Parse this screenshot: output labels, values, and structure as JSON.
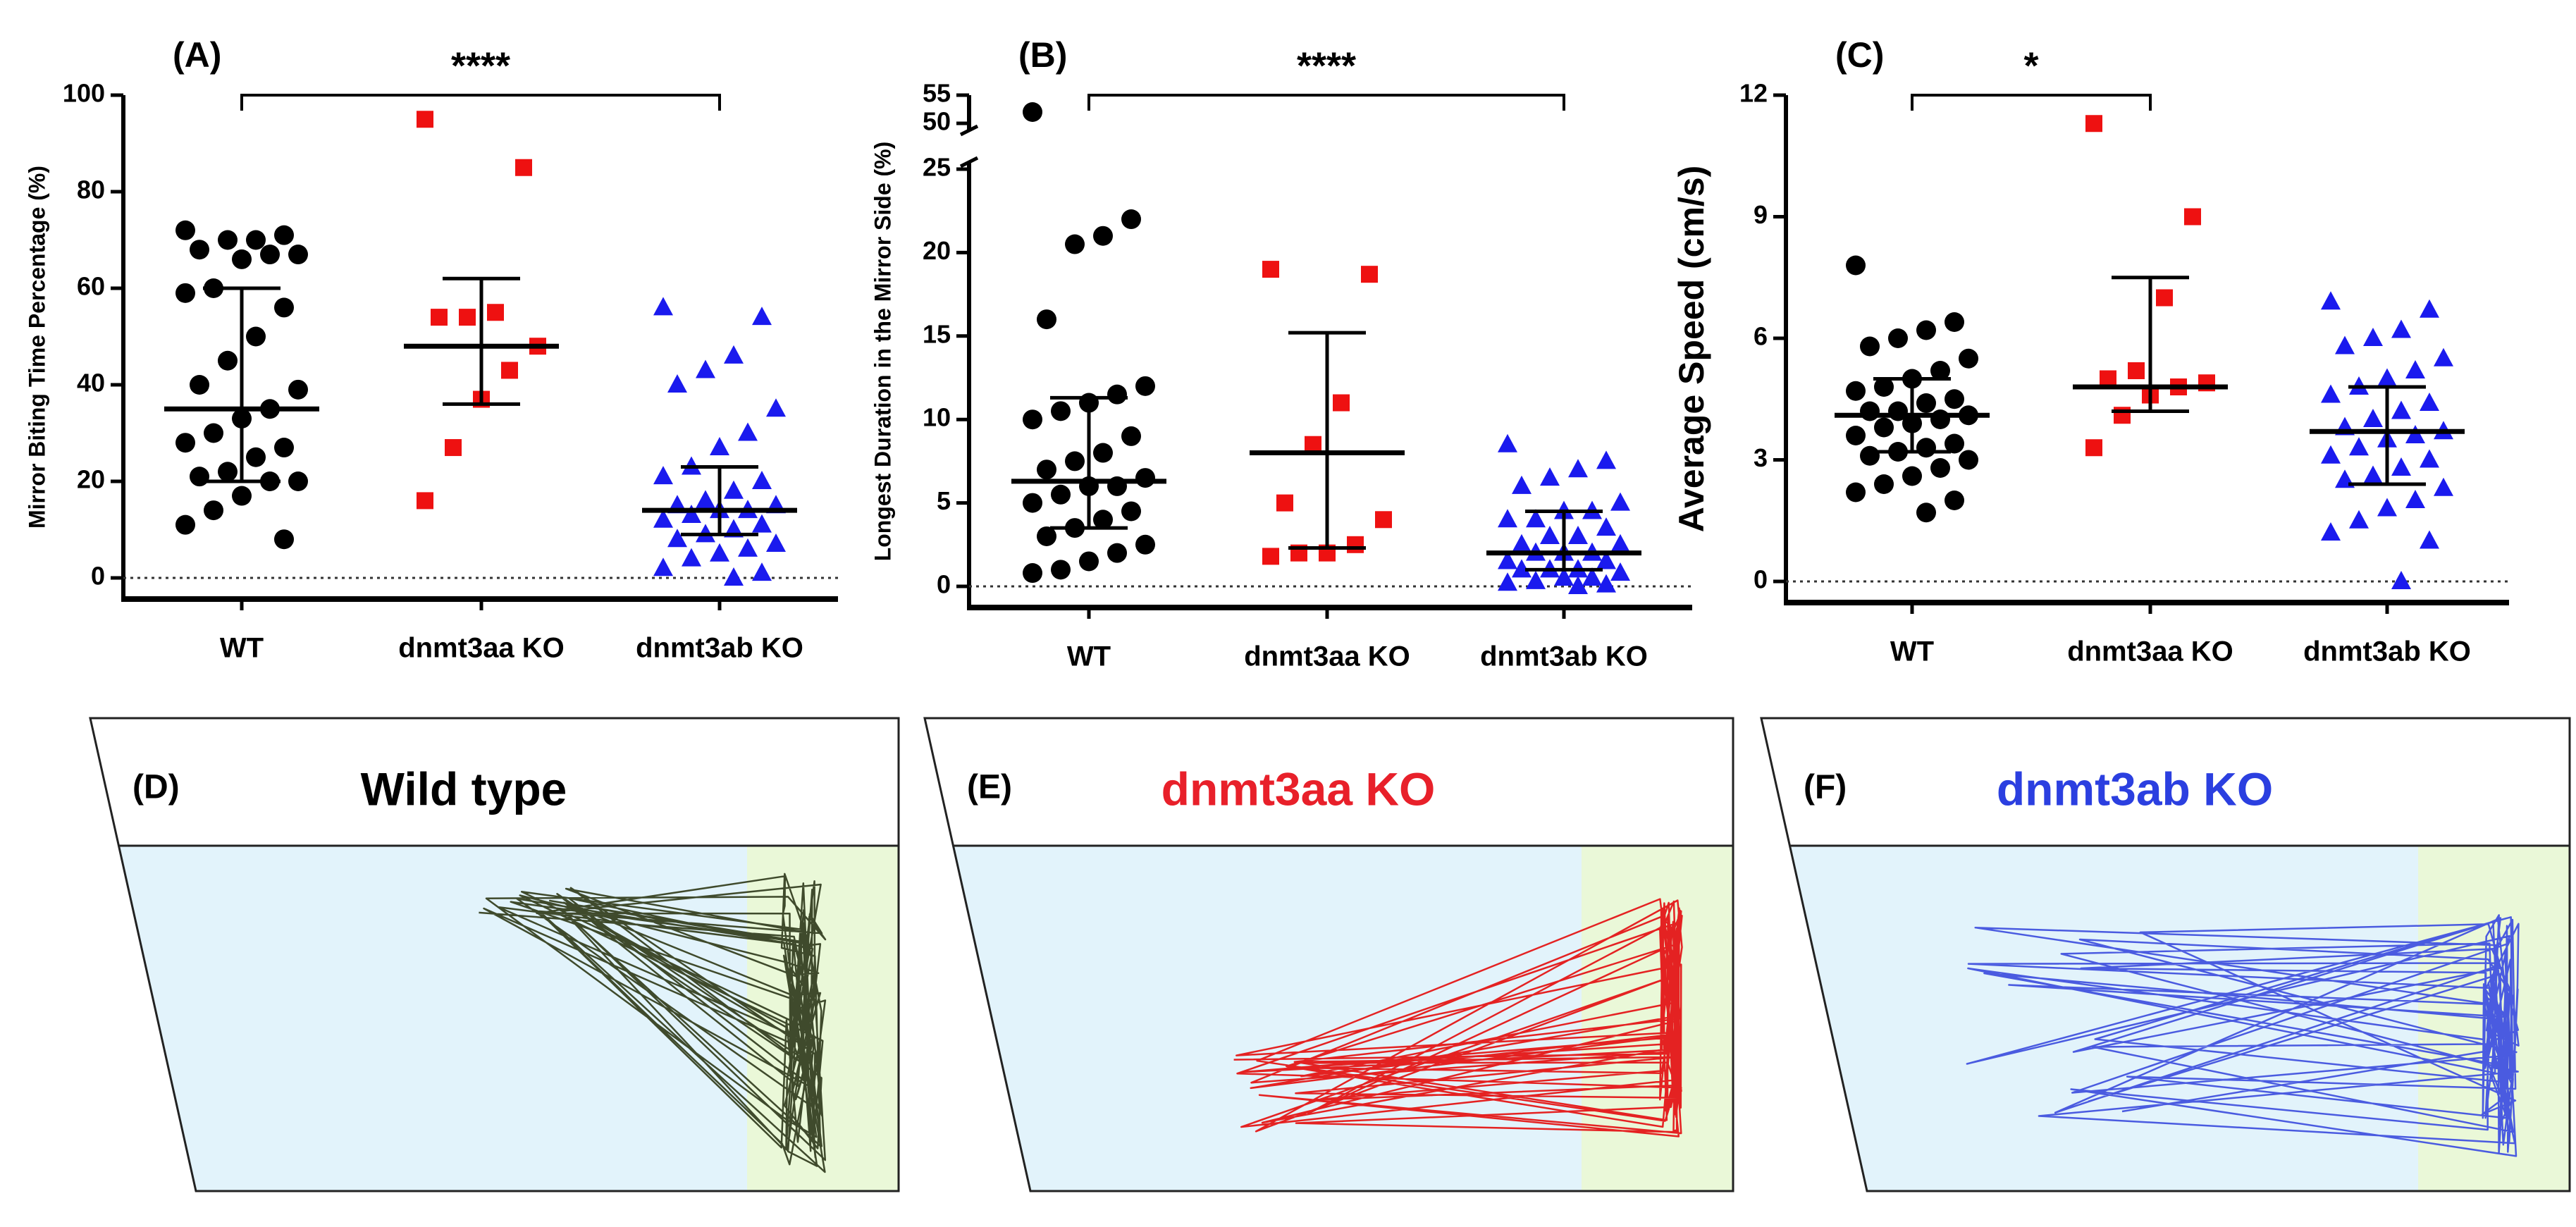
{
  "chart_data": [
    {
      "type": "dot",
      "label": "(A)",
      "ylabel": "Mirror Biting Time Percentage (%)",
      "categories": [
        "WT",
        "dnmt3aa KO",
        "dnmt3ab KO"
      ],
      "ylim": [
        0,
        100
      ],
      "yticks": [
        0,
        20,
        40,
        60,
        80,
        100
      ],
      "groups": [
        {
          "color": "#000000",
          "marker": "circle",
          "median": 35,
          "q1": 20,
          "q3": 60,
          "values": [
            72,
            71,
            70,
            70,
            68,
            67,
            67,
            66,
            60,
            59,
            56,
            50,
            45,
            40,
            39,
            35,
            33,
            30,
            28,
            27,
            25,
            22,
            21,
            20,
            20,
            17,
            14,
            11,
            8
          ]
        },
        {
          "color": "#ee1111",
          "marker": "square",
          "median": 48,
          "q1": 36,
          "q3": 62,
          "values": [
            95,
            85,
            55,
            54,
            54,
            48,
            43,
            37,
            27,
            16
          ]
        },
        {
          "color": "#1a1aee",
          "marker": "triangle",
          "median": 14,
          "q1": 9,
          "q3": 23,
          "values": [
            56,
            54,
            46,
            43,
            40,
            35,
            30,
            27,
            23,
            21,
            20,
            18,
            16,
            15,
            15,
            14,
            14,
            13,
            12,
            11,
            10,
            9,
            8,
            7,
            6,
            5,
            4,
            2,
            1,
            0
          ]
        }
      ],
      "comparisons": [
        {
          "from": 0,
          "to": 2,
          "label": "****"
        }
      ]
    },
    {
      "type": "dot",
      "label": "(B)",
      "ylabel": "Longest  Duration in the Mirror  Side (%)",
      "categories": [
        "WT",
        "dnmt3aa KO",
        "dnmt3ab KO"
      ],
      "ylim": [
        0,
        55
      ],
      "axis_break": [
        25,
        50
      ],
      "yticks": [
        0,
        5,
        10,
        15,
        20,
        25,
        50,
        55
      ],
      "groups": [
        {
          "color": "#000000",
          "marker": "circle",
          "median": 6.3,
          "q1": 3.5,
          "q3": 11.3,
          "values": [
            52,
            22,
            21,
            20.5,
            16,
            12,
            11.5,
            11,
            10.5,
            10,
            9,
            8,
            7.5,
            7,
            6.5,
            6,
            6,
            5.5,
            5,
            4.5,
            4,
            3.5,
            3,
            2.5,
            2,
            1.5,
            1,
            0.8
          ]
        },
        {
          "color": "#ee1111",
          "marker": "square",
          "median": 8,
          "q1": 2.3,
          "q3": 15.2,
          "values": [
            19,
            18.7,
            11,
            8.5,
            5,
            4,
            2.5,
            2,
            2,
            1.8
          ]
        },
        {
          "color": "#1a1aee",
          "marker": "triangle",
          "median": 2,
          "q1": 1,
          "q3": 4.5,
          "values": [
            8.5,
            7.5,
            7,
            6.5,
            6,
            5,
            4.5,
            4.5,
            4,
            4,
            3.5,
            3,
            3,
            2.5,
            2.5,
            2,
            2,
            2,
            1.5,
            1.5,
            1,
            1,
            1,
            0.8,
            0.5,
            0.5,
            0.3,
            0.2,
            0.1,
            0
          ]
        }
      ],
      "comparisons": [
        {
          "from": 0,
          "to": 2,
          "label": "****"
        }
      ]
    },
    {
      "type": "dot",
      "label": "(C)",
      "ylabel": "Average Speed (cm/s)",
      "categories": [
        "WT",
        "dnmt3aa KO",
        "dnmt3ab KO"
      ],
      "ylim": [
        0,
        12
      ],
      "yticks": [
        0,
        3,
        6,
        9,
        12
      ],
      "groups": [
        {
          "color": "#000000",
          "marker": "circle",
          "median": 4.1,
          "q1": 3.2,
          "q3": 5.0,
          "values": [
            7.8,
            6.4,
            6.2,
            6,
            5.8,
            5.5,
            5.2,
            5,
            4.8,
            4.7,
            4.5,
            4.4,
            4.2,
            4.2,
            4.1,
            4,
            3.9,
            3.8,
            3.6,
            3.4,
            3.3,
            3.2,
            3.1,
            3,
            2.8,
            2.6,
            2.4,
            2.2,
            2,
            1.7
          ]
        },
        {
          "color": "#ee1111",
          "marker": "square",
          "median": 4.8,
          "q1": 4.2,
          "q3": 7.5,
          "values": [
            11.3,
            9,
            7,
            5.2,
            5,
            4.9,
            4.8,
            4.6,
            4.1,
            3.3
          ]
        },
        {
          "color": "#1a1aee",
          "marker": "triangle",
          "median": 3.7,
          "q1": 2.4,
          "q3": 4.8,
          "values": [
            6.9,
            6.7,
            6.2,
            6,
            5.8,
            5.5,
            5.2,
            5,
            4.8,
            4.6,
            4.4,
            4.2,
            4,
            3.8,
            3.7,
            3.6,
            3.5,
            3.3,
            3.1,
            3,
            2.8,
            2.6,
            2.5,
            2.3,
            2,
            1.8,
            1.5,
            1.2,
            1,
            0
          ]
        }
      ],
      "comparisons": [
        {
          "from": 0,
          "to": 1,
          "label": "*"
        }
      ]
    }
  ],
  "panels": [
    {
      "label": "(D)",
      "title": "Wild type",
      "title_color": "#000000",
      "track_color": "#3f4a2c"
    },
    {
      "label": "(E)",
      "title": "dnmt3aa KO",
      "title_color": "#e8202a",
      "track_color": "#e42222"
    },
    {
      "label": "(F)",
      "title": "dnmt3ab KO",
      "title_color": "#2b3fe0",
      "track_color": "#4a5be0"
    }
  ]
}
